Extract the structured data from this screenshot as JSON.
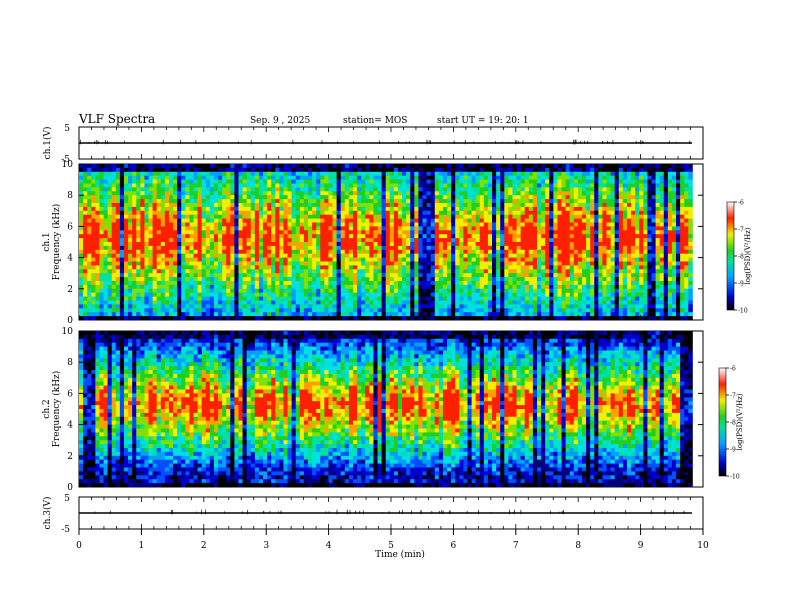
{
  "header": {
    "title": "VLF Spectra",
    "date": "Sep. 9  , 2025",
    "station": "station= MOS",
    "start_ut": "start  UT =   19: 20: 1"
  },
  "chart_data": [
    {
      "type": "line",
      "panel": "ch1-voltage",
      "ylabel": "ch.1(V)",
      "ylim": [
        -5,
        5
      ],
      "yticks": [
        "5",
        "-5"
      ],
      "trace_level": 0
    },
    {
      "type": "heatmap",
      "panel": "ch1-spectrogram",
      "ylabel_channel": "ch.1",
      "ylabel": "Frequency  (kHz)",
      "ylim": [
        0,
        10
      ],
      "yticks": [
        "0",
        "2",
        "4",
        "6",
        "8",
        "10"
      ],
      "xlim": [
        0,
        9.83
      ],
      "colorbar": {
        "label": "log(PSD)(V²/Hz)",
        "range": [
          -10,
          -6
        ],
        "ticks": [
          "-6",
          "-7",
          "-8",
          "-9",
          "-10"
        ]
      },
      "dominant_band_khz": [
        1.5,
        9.0
      ]
    },
    {
      "type": "heatmap",
      "panel": "ch2-spectrogram",
      "ylabel_channel": "ch.2",
      "ylabel": "Frequency  (kHz)",
      "ylim": [
        0,
        10
      ],
      "yticks": [
        "0",
        "2",
        "4",
        "6",
        "8",
        "10"
      ],
      "xlim": [
        0,
        9.83
      ],
      "colorbar": {
        "label": "log(PSD)(V²/Hz)",
        "range": [
          -10,
          -6
        ],
        "ticks": [
          "-6",
          "-7",
          "-8",
          "-9",
          "-10"
        ]
      },
      "dominant_band_khz": [
        3.0,
        7.5
      ]
    },
    {
      "type": "line",
      "panel": "ch3-voltage",
      "ylabel": "ch.3(V)",
      "ylim": [
        -5,
        5
      ],
      "yticks": [
        "5",
        "-5"
      ],
      "trace_level": 0
    }
  ],
  "xaxis": {
    "label": "Time  (min)",
    "range": [
      0,
      10
    ],
    "ticks": [
      "0",
      "1",
      "2",
      "3",
      "4",
      "5",
      "6",
      "7",
      "8",
      "9",
      "10"
    ]
  },
  "colors": {
    "ink": "#000000",
    "background": "#ffffff"
  }
}
